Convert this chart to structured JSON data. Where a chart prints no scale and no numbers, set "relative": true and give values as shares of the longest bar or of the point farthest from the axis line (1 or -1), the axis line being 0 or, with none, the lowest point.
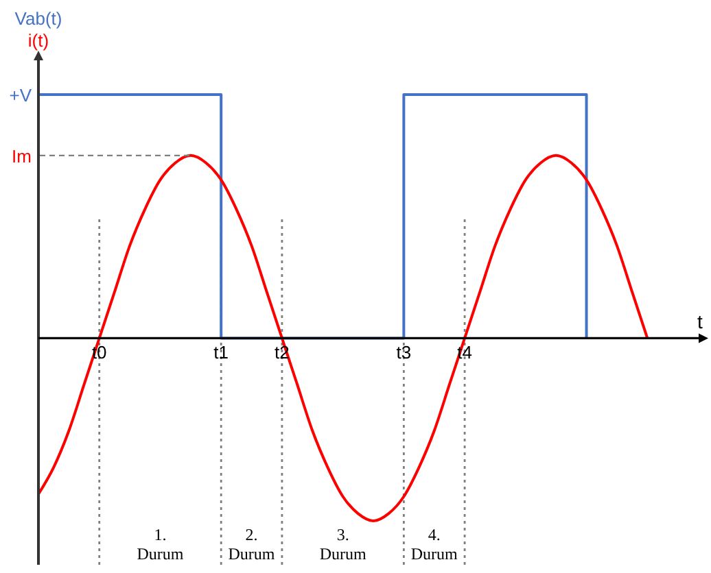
{
  "chart_data": {
    "type": "line",
    "relative": true,
    "xlabel": "t",
    "categories": [
      null,
      null,
      null,
      null,
      "t0",
      null,
      null,
      null,
      null,
      null,
      null,
      null,
      "t1",
      null,
      null,
      null,
      "t2",
      null,
      null,
      null,
      null,
      null,
      null,
      null,
      "t3",
      null,
      null,
      null,
      "t4",
      null,
      null,
      null,
      null,
      null,
      null,
      null,
      null,
      null,
      null,
      null,
      null,
      null,
      null,
      null,
      null
    ],
    "series": [
      {
        "name": "Vab(t)",
        "type": "step",
        "color": "#4472c4",
        "values": [
          1,
          1,
          1,
          1,
          1,
          1,
          1,
          1,
          1,
          1,
          1,
          1,
          0,
          0,
          0,
          0,
          0,
          0,
          0,
          0,
          0,
          0,
          0,
          0,
          1,
          1,
          1,
          1,
          1,
          1,
          1,
          1,
          1,
          1,
          1,
          1,
          0,
          null,
          null,
          null,
          null,
          null,
          null,
          null,
          null
        ]
      },
      {
        "name": "i(t)",
        "color": "#ff0000",
        "values": [
          -0.64,
          -0.53,
          -0.38,
          -0.19,
          0,
          0.19,
          0.38,
          0.53,
          0.65,
          0.72,
          0.75,
          0.72,
          0.65,
          0.53,
          0.38,
          0.19,
          0,
          -0.19,
          -0.38,
          -0.53,
          -0.65,
          -0.72,
          -0.75,
          -0.72,
          -0.65,
          -0.53,
          -0.38,
          -0.19,
          0,
          0.19,
          0.38,
          0.53,
          0.65,
          0.72,
          0.75,
          0.72,
          0.65,
          0.53,
          0.38,
          0.19,
          0,
          null,
          null,
          null,
          null
        ]
      }
    ],
    "ref_lines": [
      {
        "axis": "x",
        "value": "t0",
        "color": "#7f7f7f",
        "line_style": "dotted"
      },
      {
        "axis": "x",
        "value": "t1",
        "color": "#7f7f7f",
        "line_style": "dotted"
      },
      {
        "axis": "x",
        "value": "t2",
        "color": "#7f7f7f",
        "line_style": "dotted"
      },
      {
        "axis": "x",
        "value": "t3",
        "color": "#7f7f7f",
        "line_style": "dotted"
      },
      {
        "axis": "x",
        "value": "t4",
        "color": "#7f7f7f",
        "line_style": "dotted"
      }
    ],
    "annotations": [
      "+V",
      "Im",
      "1. Durum",
      "2. Durum",
      "3. Durum",
      "4. Durum"
    ]
  }
}
